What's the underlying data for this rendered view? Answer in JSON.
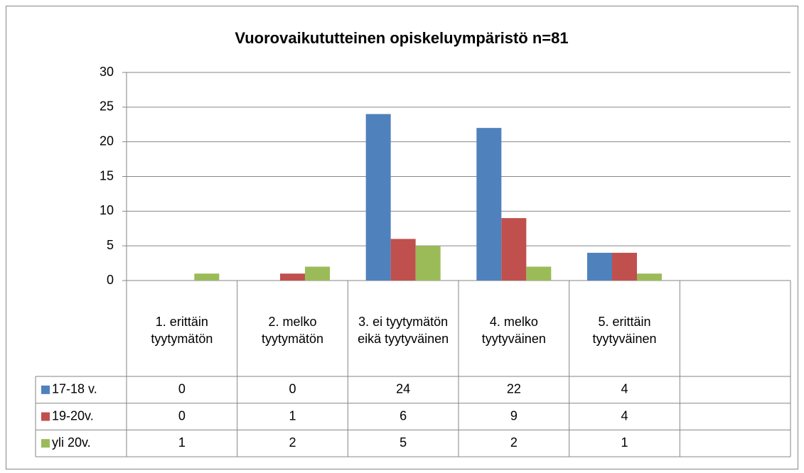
{
  "chart_data": {
    "type": "bar",
    "title": "Vuorovaikututteinen opiskeluympäristö n=81",
    "categories": [
      "1. erittäin tyytymätön",
      "2. melko tyytymätön",
      "3. ei tyytymätön eikä tyytyväinen",
      "4. melko tyytyväinen",
      "5. erittäin tyytyväinen",
      null
    ],
    "series": [
      {
        "name": "17-18 v.",
        "color": "#4f81bd",
        "values": [
          0,
          0,
          24,
          22,
          4,
          null
        ]
      },
      {
        "name": "19-20v.",
        "color": "#c0504d",
        "values": [
          0,
          1,
          6,
          9,
          4,
          null
        ]
      },
      {
        "name": "yli 20v.",
        "color": "#9bbb59",
        "values": [
          1,
          2,
          5,
          2,
          1,
          null
        ]
      }
    ],
    "ylim": [
      0,
      30
    ],
    "yticks": [
      0,
      5,
      10,
      15,
      20,
      25,
      30
    ],
    "grid": true,
    "data_table": true
  }
}
